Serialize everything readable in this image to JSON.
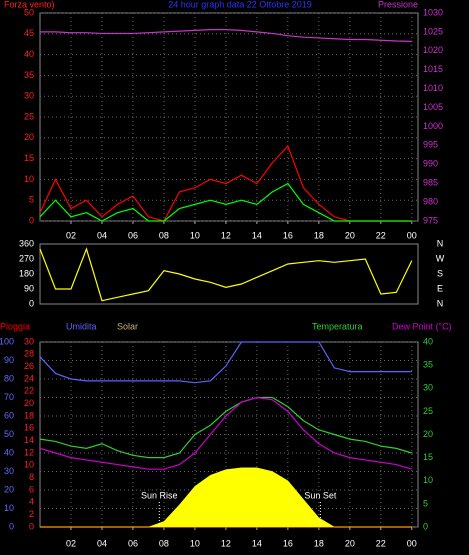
{
  "chart_data": [
    {
      "type": "line",
      "title": "24 hour graph data 22 Ottobre 2019",
      "y_label": "Forza vento)",
      "y2_label": "Pressione",
      "x": [
        0,
        1,
        2,
        3,
        4,
        5,
        6,
        7,
        8,
        9,
        10,
        11,
        12,
        13,
        14,
        15,
        16,
        17,
        18,
        19,
        20,
        21,
        22,
        23,
        24
      ],
      "xlim": [
        0,
        24.4
      ],
      "xticks": [
        {
          "value": 2,
          "label": "02"
        },
        {
          "value": 4,
          "label": "04"
        },
        {
          "value": 6,
          "label": "06"
        },
        {
          "value": 8,
          "label": "08"
        },
        10,
        12,
        14,
        16,
        18,
        20,
        22,
        {
          "value": 24,
          "label": "00"
        }
      ],
      "ylim": [
        0,
        50
      ],
      "yticks": [
        0,
        5,
        10,
        15,
        20,
        25,
        30,
        35,
        40,
        45,
        50
      ],
      "ytick_color": "#ff2020",
      "y2lim": [
        975,
        1030
      ],
      "y2ticks": [
        975,
        980,
        985,
        990,
        995,
        1000,
        1005,
        1010,
        1015,
        1020,
        1025,
        1030
      ],
      "y2tick_color": "#cc33cc",
      "grid": true,
      "series": [
        {
          "name": "Forza vento)",
          "color": "#ff0000",
          "values": [
            2,
            10,
            3,
            5,
            1,
            4,
            6,
            1,
            0,
            7,
            8,
            10,
            9,
            11,
            9,
            14,
            18,
            8,
            4,
            1,
            0,
            0,
            0,
            0,
            0
          ]
        },
        {
          "color": "#00ff00",
          "values": [
            1,
            5,
            1,
            2,
            0,
            2,
            3,
            0,
            0,
            3,
            4,
            5,
            4,
            5,
            4,
            7,
            9,
            4,
            2,
            0,
            0,
            0,
            0,
            0,
            0
          ]
        },
        {
          "name": "Pressione",
          "color": "#cc33cc",
          "axis": "y2",
          "values": [
            1025,
            1025,
            1024.8,
            1024.8,
            1024.6,
            1024.6,
            1024.6,
            1024.8,
            1025,
            1025.2,
            1025.4,
            1025.6,
            1025.6,
            1025.4,
            1025,
            1024.6,
            1024,
            1023.6,
            1023.4,
            1023.2,
            1023,
            1023,
            1022.8,
            1022.6,
            1022.5
          ]
        }
      ]
    },
    {
      "type": "line",
      "x": [
        0,
        1,
        2,
        3,
        4,
        5,
        6,
        7,
        8,
        9,
        10,
        11,
        12,
        13,
        14,
        15,
        16,
        17,
        18,
        19,
        20,
        21,
        22,
        23,
        24
      ],
      "xlim": [
        0,
        24.4
      ],
      "ylim": [
        0,
        360
      ],
      "yticks": [
        0,
        90,
        180,
        270,
        360
      ],
      "ytick_color": "#ffffff",
      "y2lim": [
        0,
        360
      ],
      "y2ticks": [
        {
          "value": 360,
          "label": "N"
        },
        {
          "value": 270,
          "label": "W"
        },
        {
          "value": 180,
          "label": "S"
        },
        {
          "value": 90,
          "label": "E"
        },
        {
          "value": 0,
          "label": "N"
        }
      ],
      "y2tick_color": "#ffffff",
      "grid": false,
      "series": [
        {
          "color": "#ffff00",
          "values": [
            330,
            90,
            90,
            330,
            20,
            40,
            60,
            80,
            200,
            180,
            150,
            130,
            100,
            120,
            160,
            200,
            240,
            250,
            260,
            250,
            260,
            270,
            60,
            70,
            260
          ]
        }
      ]
    },
    {
      "type": "line",
      "x": [
        0,
        1,
        2,
        3,
        4,
        5,
        6,
        7,
        8,
        9,
        10,
        11,
        12,
        13,
        14,
        15,
        16,
        17,
        18,
        19,
        20,
        21,
        22,
        23,
        24
      ],
      "xlim": [
        0,
        24.4
      ],
      "xticks": [
        {
          "value": 2,
          "label": "02"
        },
        {
          "value": 4,
          "label": "04"
        },
        {
          "value": 6,
          "label": "06"
        },
        {
          "value": 8,
          "label": "08"
        },
        10,
        12,
        14,
        16,
        18,
        20,
        22,
        {
          "value": 24,
          "label": "00"
        }
      ],
      "ylim": [
        0,
        100
      ],
      "yticks": [
        0,
        10,
        20,
        30,
        40,
        50,
        60,
        70,
        80,
        90,
        100
      ],
      "ytick_color": "#6666ff",
      "y3lim": [
        0,
        30
      ],
      "y3ticks": [
        0,
        2,
        4,
        6,
        8,
        10,
        12,
        14,
        16,
        18,
        20,
        22,
        24,
        26,
        28,
        30
      ],
      "y3tick_color": "#ff2020",
      "y2lim": [
        0,
        40
      ],
      "y2ticks": [
        0,
        5,
        10,
        15,
        20,
        25,
        30,
        35,
        40
      ],
      "y2tick_color": "#33cc33",
      "grid": true,
      "annotations": [
        {
          "text": "Sun Rise",
          "x": 7.7
        },
        {
          "text": "Sun Set",
          "x": 18.1
        }
      ],
      "series": [
        {
          "name": "Pioggia",
          "color": "#ff0000",
          "axis": "y3",
          "values": [
            0,
            0,
            0,
            0,
            0,
            0,
            0,
            0,
            0,
            0,
            0,
            0,
            0,
            0,
            0,
            0,
            0,
            0,
            0,
            0,
            0,
            0,
            0,
            0,
            0
          ]
        },
        {
          "name": "Umidita",
          "color": "#6060ff",
          "values": [
            92,
            83,
            80,
            79,
            79,
            79,
            79,
            79,
            79,
            79,
            78,
            79,
            87,
            100,
            100,
            100,
            100,
            100,
            100,
            86,
            84,
            84,
            84,
            84,
            84
          ]
        },
        {
          "name": "Solar",
          "color": "#ffff00",
          "legend_color": "#c8b478",
          "style": "area",
          "values": [
            0,
            0,
            0,
            0,
            0,
            0,
            0,
            0,
            3,
            12,
            22,
            28,
            31,
            32,
            32,
            30,
            25,
            15,
            5,
            0,
            0,
            0,
            0,
            0,
            0
          ]
        },
        {
          "name": "Temperatura",
          "color": "#33cc33",
          "axis": "y2",
          "values": [
            19,
            18.5,
            17.5,
            17,
            18,
            16.5,
            15.5,
            15,
            15,
            16,
            20,
            22,
            25,
            27,
            28,
            28,
            26,
            23,
            21,
            20,
            19,
            18.5,
            17.5,
            17,
            16
          ]
        },
        {
          "name": "Dew Point (°C)",
          "color": "#cc00cc",
          "axis": "y2",
          "values": [
            17,
            16,
            15,
            14.5,
            14,
            13.5,
            13,
            12.5,
            12.5,
            13.5,
            16,
            20,
            24,
            27,
            28,
            27.5,
            25,
            21,
            18,
            16,
            15,
            14.5,
            14,
            13.5,
            12.5
          ]
        }
      ]
    }
  ]
}
